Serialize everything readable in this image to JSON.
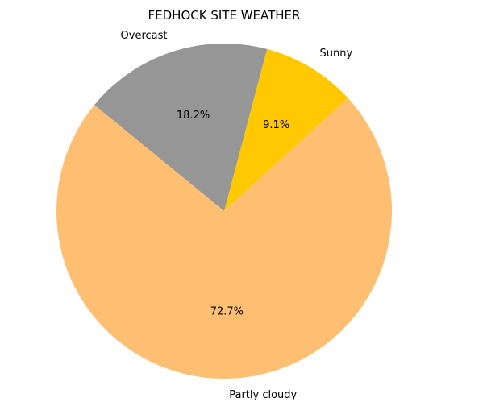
{
  "chart_data": {
    "type": "pie",
    "title": "FEDHOCK SITE WEATHER",
    "slices": [
      {
        "label": "Partly cloudy",
        "value": 72.7,
        "pct_label": "72.7%",
        "color": "#FFBF72"
      },
      {
        "label": "Sunny",
        "value": 9.1,
        "pct_label": "9.1%",
        "color": "#FFC800"
      },
      {
        "label": "Overcast",
        "value": 18.2,
        "pct_label": "18.2%",
        "color": "#969696"
      }
    ]
  }
}
